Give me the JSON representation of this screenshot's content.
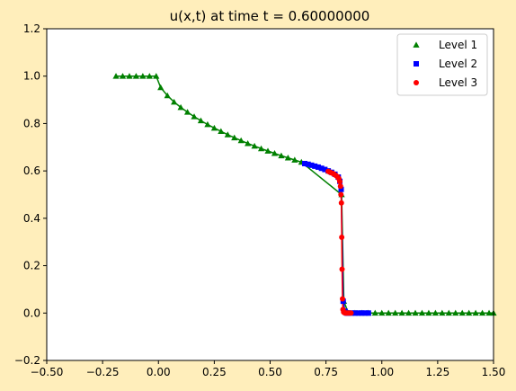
{
  "chart_data": {
    "type": "line",
    "title": "u(x,t) at time t =      0.60000000",
    "xlim": [
      -0.5,
      1.5
    ],
    "ylim": [
      -0.2,
      1.2
    ],
    "xticks": [
      -0.5,
      -0.25,
      0.0,
      0.25,
      0.5,
      0.75,
      1.0,
      1.25,
      1.5
    ],
    "xtick_labels": [
      "−0.50",
      "−0.25",
      "0.00",
      "0.25",
      "0.50",
      "0.75",
      "1.00",
      "1.25",
      "1.50"
    ],
    "yticks": [
      -0.2,
      0.0,
      0.2,
      0.4,
      0.6,
      0.8,
      1.0,
      1.2
    ],
    "ytick_labels": [
      "−0.2",
      "0.0",
      "0.2",
      "0.4",
      "0.6",
      "0.8",
      "1.0",
      "1.2"
    ],
    "grid": false,
    "legend_position": "top-right",
    "series": [
      {
        "name": "Level 1",
        "color": "#008000",
        "marker": "triangle",
        "line": true,
        "points": [
          [
            -0.19,
            1.0
          ],
          [
            -0.16,
            1.0
          ],
          [
            -0.13,
            1.0
          ],
          [
            -0.1,
            1.0
          ],
          [
            -0.07,
            1.0
          ],
          [
            -0.04,
            1.0
          ],
          [
            -0.01,
            1.0
          ],
          [
            0.01,
            0.952
          ],
          [
            0.04,
            0.918
          ],
          [
            0.07,
            0.891
          ],
          [
            0.1,
            0.868
          ],
          [
            0.13,
            0.848
          ],
          [
            0.16,
            0.829
          ],
          [
            0.19,
            0.812
          ],
          [
            0.22,
            0.796
          ],
          [
            0.25,
            0.781
          ],
          [
            0.28,
            0.767
          ],
          [
            0.31,
            0.753
          ],
          [
            0.34,
            0.74
          ],
          [
            0.37,
            0.728
          ],
          [
            0.4,
            0.716
          ],
          [
            0.43,
            0.705
          ],
          [
            0.46,
            0.694
          ],
          [
            0.49,
            0.684
          ],
          [
            0.52,
            0.674
          ],
          [
            0.55,
            0.664
          ],
          [
            0.58,
            0.655
          ],
          [
            0.61,
            0.646
          ],
          [
            0.64,
            0.637
          ],
          [
            0.82,
            0.5
          ],
          [
            0.83,
            0.05
          ],
          [
            0.85,
            0.0
          ],
          [
            0.88,
            0.0
          ],
          [
            0.91,
            0.0
          ],
          [
            0.94,
            0.0
          ],
          [
            0.97,
            0.0
          ],
          [
            1.0,
            0.0
          ],
          [
            1.03,
            0.0
          ],
          [
            1.06,
            0.0
          ],
          [
            1.09,
            0.0
          ],
          [
            1.12,
            0.0
          ],
          [
            1.15,
            0.0
          ],
          [
            1.18,
            0.0
          ],
          [
            1.21,
            0.0
          ],
          [
            1.24,
            0.0
          ],
          [
            1.27,
            0.0
          ],
          [
            1.3,
            0.0
          ],
          [
            1.33,
            0.0
          ],
          [
            1.36,
            0.0
          ],
          [
            1.39,
            0.0
          ],
          [
            1.42,
            0.0
          ],
          [
            1.45,
            0.0
          ],
          [
            1.48,
            0.0
          ],
          [
            1.5,
            0.0
          ]
        ]
      },
      {
        "name": "Level 2",
        "color": "#0000ff",
        "marker": "square",
        "line": true,
        "points": [
          [
            0.655,
            0.631
          ],
          [
            0.67,
            0.628
          ],
          [
            0.685,
            0.624
          ],
          [
            0.7,
            0.62
          ],
          [
            0.715,
            0.616
          ],
          [
            0.73,
            0.611
          ],
          [
            0.745,
            0.606
          ],
          [
            0.76,
            0.6
          ],
          [
            0.775,
            0.594
          ],
          [
            0.79,
            0.586
          ],
          [
            0.805,
            0.574
          ],
          [
            0.812,
            0.556
          ],
          [
            0.818,
            0.522
          ],
          [
            0.827,
            0.05
          ],
          [
            0.835,
            0.008
          ],
          [
            0.843,
            0.0
          ],
          [
            0.85,
            0.0
          ],
          [
            0.865,
            0.0
          ],
          [
            0.88,
            0.0
          ],
          [
            0.895,
            0.0
          ],
          [
            0.91,
            0.0
          ],
          [
            0.925,
            0.0
          ],
          [
            0.94,
            0.0
          ]
        ]
      },
      {
        "name": "Level 3",
        "color": "#ff0000",
        "marker": "circle",
        "line": true,
        "points": [
          [
            0.76,
            0.598
          ],
          [
            0.767,
            0.595
          ],
          [
            0.774,
            0.592
          ],
          [
            0.781,
            0.589
          ],
          [
            0.788,
            0.585
          ],
          [
            0.795,
            0.58
          ],
          [
            0.802,
            0.575
          ],
          [
            0.808,
            0.567
          ],
          [
            0.812,
            0.555
          ],
          [
            0.815,
            0.535
          ],
          [
            0.817,
            0.5
          ],
          [
            0.819,
            0.465
          ],
          [
            0.8205,
            0.32
          ],
          [
            0.822,
            0.185
          ],
          [
            0.824,
            0.06
          ],
          [
            0.826,
            0.015
          ],
          [
            0.829,
            0.004
          ],
          [
            0.833,
            0.001
          ],
          [
            0.838,
            0.0
          ],
          [
            0.843,
            0.0
          ],
          [
            0.848,
            0.0
          ],
          [
            0.855,
            0.0
          ],
          [
            0.862,
            0.0
          ]
        ]
      }
    ]
  }
}
